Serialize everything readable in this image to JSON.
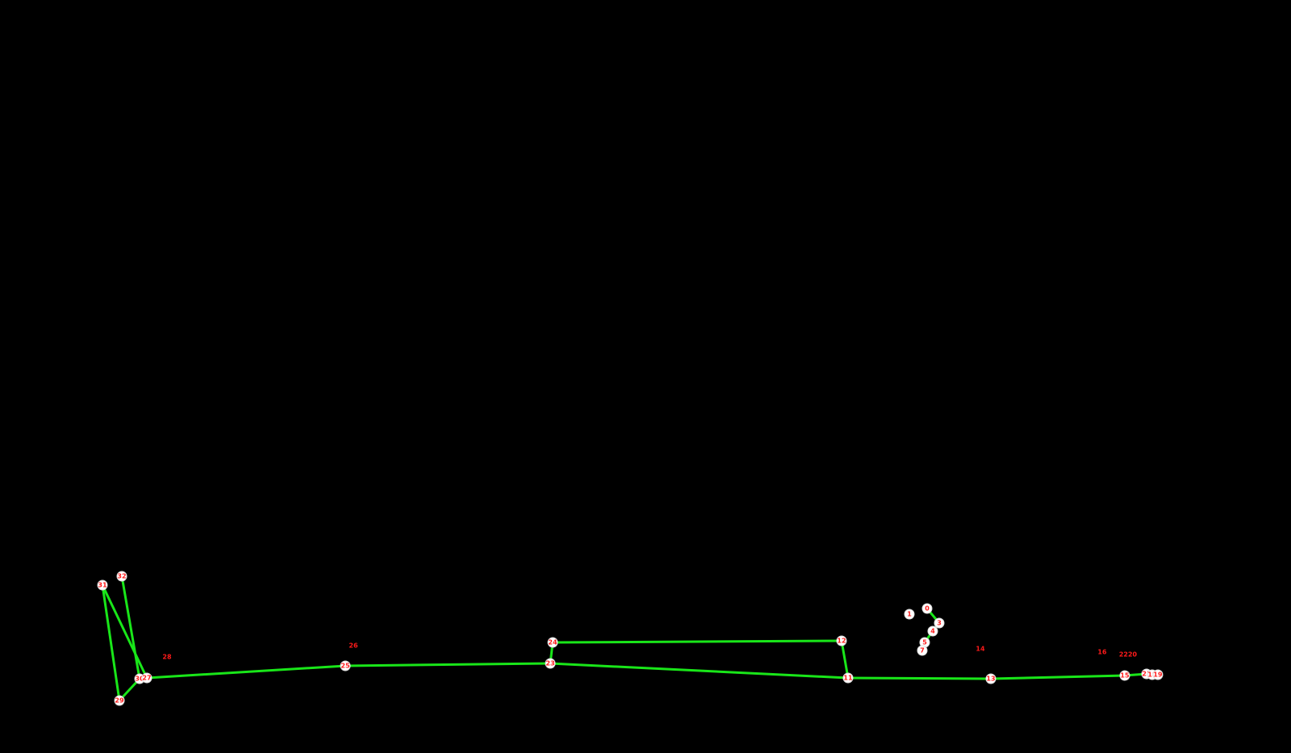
{
  "colors": {
    "background": "#000000",
    "edge": "#19e619",
    "node_fill": "#ffffff",
    "label": "#ff1a1a"
  },
  "nodes": [
    {
      "id": "n31",
      "label": "31"
    },
    {
      "id": "n32",
      "label": "32"
    },
    {
      "id": "n29",
      "label": "29"
    },
    {
      "id": "n30",
      "label": "30"
    },
    {
      "id": "n27",
      "label": "27"
    },
    {
      "id": "n25",
      "label": "25"
    },
    {
      "id": "n23",
      "label": "23"
    },
    {
      "id": "n24",
      "label": "24"
    },
    {
      "id": "n12",
      "label": "12"
    },
    {
      "id": "n11",
      "label": "11"
    },
    {
      "id": "n13",
      "label": "13"
    },
    {
      "id": "n15",
      "label": "15"
    },
    {
      "id": "n21",
      "label": "21"
    },
    {
      "id": "n18",
      "label": "18"
    },
    {
      "id": "n19",
      "label": "19"
    },
    {
      "id": "n1",
      "label": "1"
    },
    {
      "id": "n0",
      "label": "0"
    },
    {
      "id": "n3",
      "label": "3"
    },
    {
      "id": "n4",
      "label": "4"
    },
    {
      "id": "n5",
      "label": "5"
    },
    {
      "id": "n7",
      "label": "7"
    }
  ],
  "free_labels": [
    {
      "id": "f28",
      "label": "28"
    },
    {
      "id": "f26",
      "label": "26"
    },
    {
      "id": "f14",
      "label": "14"
    },
    {
      "id": "f16",
      "label": "16"
    },
    {
      "id": "f2220",
      "label": "2220"
    }
  ],
  "edges": [
    [
      "n31",
      "n29"
    ],
    [
      "n31",
      "n27"
    ],
    [
      "n32",
      "n30"
    ],
    [
      "n29",
      "n30"
    ],
    [
      "n30",
      "n27"
    ],
    [
      "n27",
      "n25"
    ],
    [
      "n25",
      "n23"
    ],
    [
      "n23",
      "n24"
    ],
    [
      "n24",
      "n12"
    ],
    [
      "n23",
      "n11"
    ],
    [
      "n12",
      "n11"
    ],
    [
      "n11",
      "n13"
    ],
    [
      "n13",
      "n15"
    ],
    [
      "n15",
      "n21"
    ],
    [
      "n21",
      "n18"
    ],
    [
      "n18",
      "n19"
    ],
    [
      "n0",
      "n3"
    ],
    [
      "n3",
      "n4"
    ],
    [
      "n4",
      "n5"
    ]
  ]
}
